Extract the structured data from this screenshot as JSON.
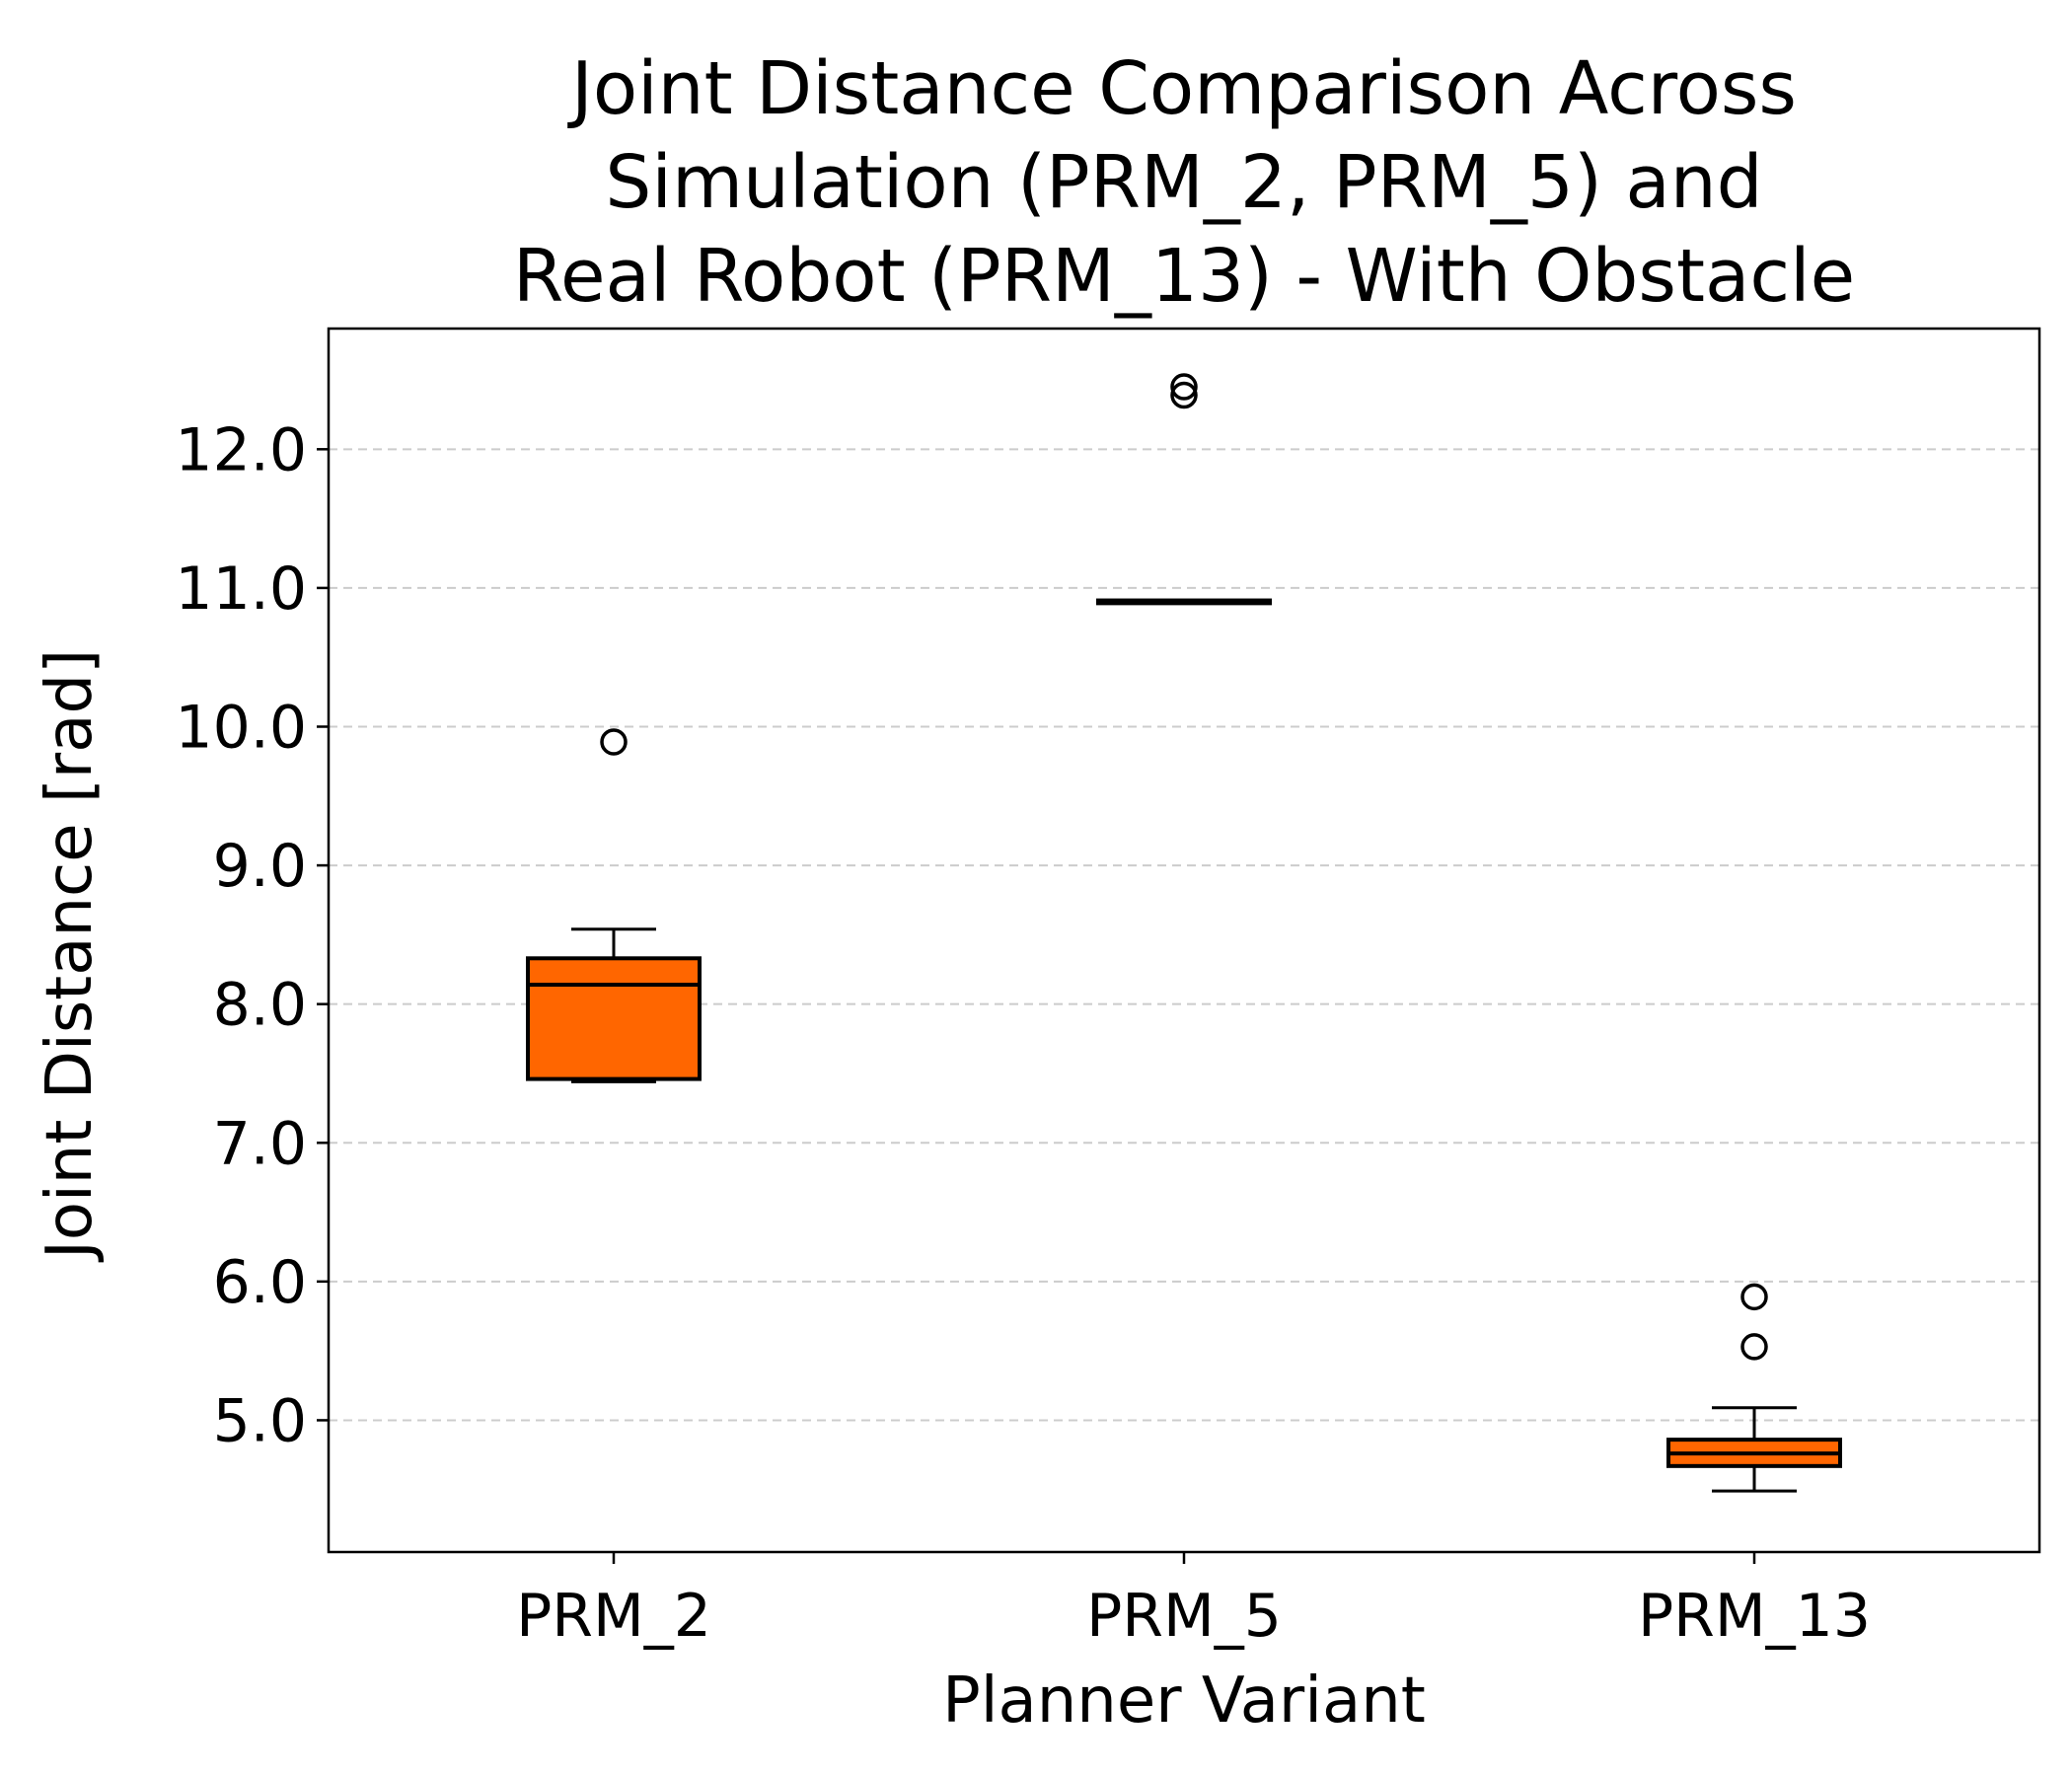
{
  "chart_data": {
    "type": "box",
    "title_lines": [
      "Joint Distance Comparison Across",
      "Simulation (PRM_2, PRM_5) and",
      "Real Robot (PRM_13) - With Obstacle"
    ],
    "xlabel": "Planner Variant",
    "ylabel": "Joint Distance [rad]",
    "categories": [
      "PRM_2",
      "PRM_5",
      "PRM_13"
    ],
    "ylim": [
      4.05,
      12.87
    ],
    "yticks": [
      5.0,
      6.0,
      7.0,
      8.0,
      9.0,
      10.0,
      11.0,
      12.0
    ],
    "ytick_labels": [
      "5.0",
      "6.0",
      "7.0",
      "8.0",
      "9.0",
      "10.0",
      "11.0",
      "12.0"
    ],
    "grid": "y-dashed",
    "box_color": "#ff6600",
    "boxes": [
      {
        "label": "PRM_2",
        "whislo": 7.44,
        "q1": 7.46,
        "med": 8.14,
        "q3": 8.33,
        "whishi": 8.54,
        "fliers": [
          9.89
        ]
      },
      {
        "label": "PRM_5",
        "whislo": 10.89,
        "q1": 10.89,
        "med": 10.9,
        "q3": 10.91,
        "whishi": 10.91,
        "fliers": [
          12.39,
          12.45
        ]
      },
      {
        "label": "PRM_13",
        "whislo": 4.49,
        "q1": 4.67,
        "med": 4.76,
        "q3": 4.86,
        "whishi": 5.09,
        "fliers": [
          5.53,
          5.89
        ]
      }
    ]
  }
}
